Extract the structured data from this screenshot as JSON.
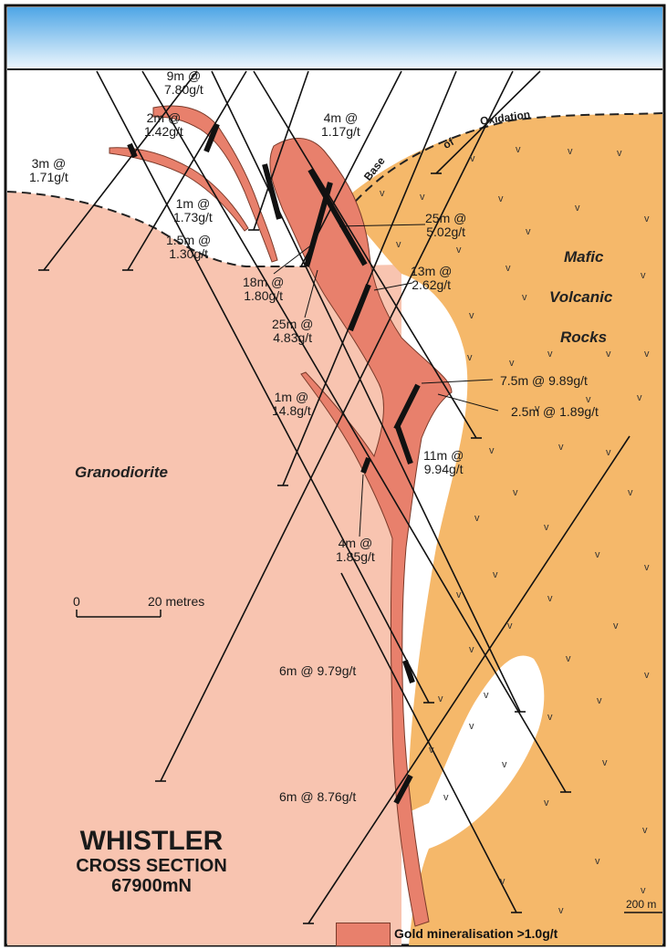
{
  "title": {
    "main": "WHISTLER",
    "sub": "CROSS SECTION",
    "coord": "67900mN"
  },
  "rocks": {
    "granodiorite": "Granodiorite",
    "mafic_1": "Mafic",
    "mafic_2": "Volcanic",
    "mafic_3": "Rocks"
  },
  "oxidation": {
    "base": "Base",
    "of": "of",
    "oxidation": "Oxidation"
  },
  "scale": {
    "zero": "0",
    "twenty": "20 metres",
    "right": "200 m"
  },
  "legend": {
    "label": "Gold mineralisation >1.0g/t"
  },
  "intercepts": [
    {
      "id": "9m",
      "text": "9m @\n7.80g/t"
    },
    {
      "id": "2m",
      "text": "2m @\n1.42g/t"
    },
    {
      "id": "3m",
      "text": "3m @\n1.71g/t"
    },
    {
      "id": "4m-top",
      "text": "4m @\n1.17g/t"
    },
    {
      "id": "1m-a",
      "text": "1m @\n1.73g/t"
    },
    {
      "id": "1.5m",
      "text": "1.5m @\n1.30g/t"
    },
    {
      "id": "25m-a",
      "text": "25m @\n5.02g/t"
    },
    {
      "id": "13m",
      "text": "13m @\n2.62g/t"
    },
    {
      "id": "18m",
      "text": "18m @\n1.80g/t"
    },
    {
      "id": "25m-b",
      "text": "25m @\n4.83g/t"
    },
    {
      "id": "7.5m",
      "text": "7.5m @ 9.89g/t"
    },
    {
      "id": "2.5m",
      "text": "2.5m @ 1.89g/t"
    },
    {
      "id": "1m-b",
      "text": "1m @\n14.8g/t"
    },
    {
      "id": "11m",
      "text": "11m @\n9.94g/t"
    },
    {
      "id": "4m-b",
      "text": "4m @\n1.85g/t"
    },
    {
      "id": "6m-a",
      "text": "6m @ 9.79g/t"
    },
    {
      "id": "6m-b",
      "text": "6m @ 8.76g/t"
    }
  ],
  "colors": {
    "sky_top": "#4fa6e6",
    "sky_bottom": "#ffffff",
    "granodiorite": "#f8c4b0",
    "mafic": "#f5b86a",
    "mineralisation": "#e8806c",
    "drill": "#111111"
  }
}
